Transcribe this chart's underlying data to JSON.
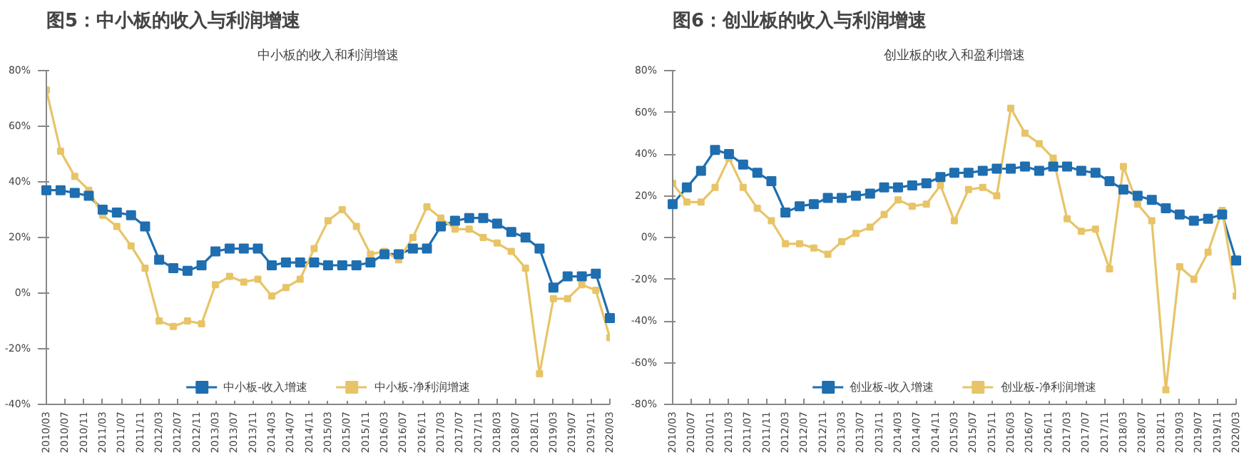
{
  "chart_data": [
    {
      "type": "line",
      "title": "图5：中小板的收入与利润增速",
      "subtitle": "中小板的收入和利润增速",
      "marker": "square",
      "grid": false,
      "legend": "bottom",
      "x": [
        "2010-03",
        "2010-06",
        "2010-09",
        "2010-12",
        "2011-03",
        "2011-06",
        "2011-09",
        "2011-12",
        "2012-03",
        "2012-06",
        "2012-09",
        "2012-12",
        "2013-03",
        "2013-06",
        "2013-09",
        "2013-12",
        "2014-03",
        "2014-06",
        "2014-09",
        "2014-12",
        "2015-03",
        "2015-06",
        "2015-09",
        "2015-12",
        "2016-03",
        "2016-06",
        "2016-09",
        "2016-12",
        "2017-03",
        "2017-06",
        "2017-09",
        "2017-12",
        "2018-03",
        "2018-06",
        "2018-09",
        "2018-12",
        "2019-03",
        "2019-06",
        "2019-09",
        "2019-12",
        "2020-03"
      ],
      "xlim": [
        "2010-03",
        "2020-03"
      ],
      "xticks": [
        {
          "value": "2010-03",
          "label": "2010/03"
        },
        {
          "value": "2010-07",
          "label": "2010/07"
        },
        {
          "value": "2010-11",
          "label": "2010/11"
        },
        {
          "value": "2011-03",
          "label": "2011/03"
        },
        {
          "value": "2011-07",
          "label": "2011/07"
        },
        {
          "value": "2011-11",
          "label": "2011/11"
        },
        {
          "value": "2012-03",
          "label": "2012/03"
        },
        {
          "value": "2012-07",
          "label": "2012/07"
        },
        {
          "value": "2012-11",
          "label": "2012/11"
        },
        {
          "value": "2013-03",
          "label": "2013/03"
        },
        {
          "value": "2013-07",
          "label": "2013/07"
        },
        {
          "value": "2013-11",
          "label": "2013/11"
        },
        {
          "value": "2014-03",
          "label": "2014/03"
        },
        {
          "value": "2014-07",
          "label": "2014/07"
        },
        {
          "value": "2014-11",
          "label": "2014/11"
        },
        {
          "value": "2015-03",
          "label": "2015/03"
        },
        {
          "value": "2015-07",
          "label": "2015/07"
        },
        {
          "value": "2015-11",
          "label": "2015/11"
        },
        {
          "value": "2016-03",
          "label": "2016/03"
        },
        {
          "value": "2016-07",
          "label": "2016/07"
        },
        {
          "value": "2016-11",
          "label": "2016/11"
        },
        {
          "value": "2017-03",
          "label": "2017/03"
        },
        {
          "value": "2017-07",
          "label": "2017/07"
        },
        {
          "value": "2017-11",
          "label": "2017/11"
        },
        {
          "value": "2018-03",
          "label": "2018/03"
        },
        {
          "value": "2018-07",
          "label": "2018/07"
        },
        {
          "value": "2018-11",
          "label": "2018/11"
        },
        {
          "value": "2019-03",
          "label": "2019/03"
        },
        {
          "value": "2019-07",
          "label": "2019/07"
        },
        {
          "value": "2019-11",
          "label": "2019/11"
        },
        {
          "value": "2020-03",
          "label": "2020/03"
        }
      ],
      "ylim": [
        -40,
        80
      ],
      "yticks": [
        {
          "value": -40,
          "label": "-40%"
        },
        {
          "value": -20,
          "label": "-20%"
        },
        {
          "value": 0,
          "label": "0%"
        },
        {
          "value": 20,
          "label": "20%"
        },
        {
          "value": 40,
          "label": "40%"
        },
        {
          "value": 60,
          "label": "60%"
        },
        {
          "value": 80,
          "label": "80%"
        }
      ],
      "series": [
        {
          "name": "中小板-收入增速",
          "color": "#1f6eb0",
          "values": [
            37,
            37,
            36,
            35,
            30,
            29,
            28,
            24,
            12,
            9,
            8,
            10,
            15,
            16,
            16,
            16,
            10,
            11,
            11,
            11,
            10,
            10,
            10,
            11,
            14,
            14,
            16,
            16,
            24,
            26,
            27,
            27,
            25,
            22,
            20,
            16,
            2,
            6,
            6,
            7,
            -9
          ]
        },
        {
          "name": "中小板-净利润增速",
          "color": "#e8c468",
          "values": [
            73,
            51,
            42,
            37,
            28,
            24,
            17,
            9,
            -10,
            -12,
            -10,
            -11,
            3,
            6,
            4,
            5,
            -1,
            2,
            5,
            16,
            26,
            30,
            24,
            14,
            15,
            12,
            20,
            31,
            27,
            23,
            23,
            20,
            18,
            15,
            9,
            -29,
            -2,
            -2,
            3,
            1,
            -16
          ]
        }
      ]
    },
    {
      "type": "line",
      "title": "图6：创业板的收入与利润增速",
      "subtitle": "创业板的收入和盈利增速",
      "marker": "square",
      "grid": false,
      "legend": "bottom",
      "x": [
        "2010-03",
        "2010-06",
        "2010-09",
        "2010-12",
        "2011-03",
        "2011-06",
        "2011-09",
        "2011-12",
        "2012-03",
        "2012-06",
        "2012-09",
        "2012-12",
        "2013-03",
        "2013-06",
        "2013-09",
        "2013-12",
        "2014-03",
        "2014-06",
        "2014-09",
        "2014-12",
        "2015-03",
        "2015-06",
        "2015-09",
        "2015-12",
        "2016-03",
        "2016-06",
        "2016-09",
        "2016-12",
        "2017-03",
        "2017-06",
        "2017-09",
        "2017-12",
        "2018-03",
        "2018-06",
        "2018-09",
        "2018-12",
        "2019-03",
        "2019-06",
        "2019-09",
        "2019-12",
        "2020-03"
      ],
      "xlim": [
        "2010-03",
        "2020-03"
      ],
      "xticks": [
        {
          "value": "2010-03",
          "label": "2010/03"
        },
        {
          "value": "2010-07",
          "label": "2010/07"
        },
        {
          "value": "2010-11",
          "label": "2010/11"
        },
        {
          "value": "2011-03",
          "label": "2011/03"
        },
        {
          "value": "2011-07",
          "label": "2011/07"
        },
        {
          "value": "2011-11",
          "label": "2011/11"
        },
        {
          "value": "2012-03",
          "label": "2012/03"
        },
        {
          "value": "2012-07",
          "label": "2012/07"
        },
        {
          "value": "2012-11",
          "label": "2012/11"
        },
        {
          "value": "2013-03",
          "label": "2013/03"
        },
        {
          "value": "2013-07",
          "label": "2013/07"
        },
        {
          "value": "2013-11",
          "label": "2013/11"
        },
        {
          "value": "2014-03",
          "label": "2014/03"
        },
        {
          "value": "2014-07",
          "label": "2014/07"
        },
        {
          "value": "2014-11",
          "label": "2014/11"
        },
        {
          "value": "2015-03",
          "label": "2015/03"
        },
        {
          "value": "2015-07",
          "label": "2015/07"
        },
        {
          "value": "2015-11",
          "label": "2015/11"
        },
        {
          "value": "2016-03",
          "label": "2016/03"
        },
        {
          "value": "2016-07",
          "label": "2016/07"
        },
        {
          "value": "2016-11",
          "label": "2016/11"
        },
        {
          "value": "2017-03",
          "label": "2017/03"
        },
        {
          "value": "2017-07",
          "label": "2017/07"
        },
        {
          "value": "2017-11",
          "label": "2017/11"
        },
        {
          "value": "2018-03",
          "label": "2018/03"
        },
        {
          "value": "2018-07",
          "label": "2018/07"
        },
        {
          "value": "2018-11",
          "label": "2018/11"
        },
        {
          "value": "2019-03",
          "label": "2019/03"
        },
        {
          "value": "2019-07",
          "label": "2019/07"
        },
        {
          "value": "2019-11",
          "label": "2019/11"
        },
        {
          "value": "2020-03",
          "label": "2020/03"
        }
      ],
      "ylim": [
        -80,
        80
      ],
      "yticks": [
        {
          "value": -80,
          "label": "-80%"
        },
        {
          "value": -60,
          "label": "-60%"
        },
        {
          "value": -40,
          "label": "-40%"
        },
        {
          "value": -20,
          "label": "-20%"
        },
        {
          "value": 0,
          "label": "0%"
        },
        {
          "value": 20,
          "label": "20%"
        },
        {
          "value": 40,
          "label": "40%"
        },
        {
          "value": 60,
          "label": "60%"
        },
        {
          "value": 80,
          "label": "80%"
        }
      ],
      "series": [
        {
          "name": "创业板-收入增速",
          "color": "#1f6eb0",
          "values": [
            16,
            24,
            32,
            42,
            40,
            35,
            31,
            27,
            12,
            15,
            16,
            19,
            19,
            20,
            21,
            24,
            24,
            25,
            26,
            29,
            31,
            31,
            32,
            33,
            33,
            34,
            32,
            34,
            34,
            32,
            31,
            27,
            23,
            20,
            18,
            14,
            11,
            8,
            9,
            11,
            -11
          ]
        },
        {
          "name": "创业板-净利润增速",
          "color": "#e8c468",
          "values": [
            26,
            17,
            17,
            24,
            38,
            24,
            14,
            8,
            -3,
            -3,
            -5,
            -8,
            -2,
            2,
            5,
            11,
            18,
            15,
            16,
            25,
            8,
            23,
            24,
            20,
            62,
            50,
            45,
            38,
            9,
            3,
            4,
            -15,
            34,
            16,
            8,
            -73,
            -14,
            -20,
            -7,
            13,
            -28
          ]
        }
      ]
    }
  ]
}
